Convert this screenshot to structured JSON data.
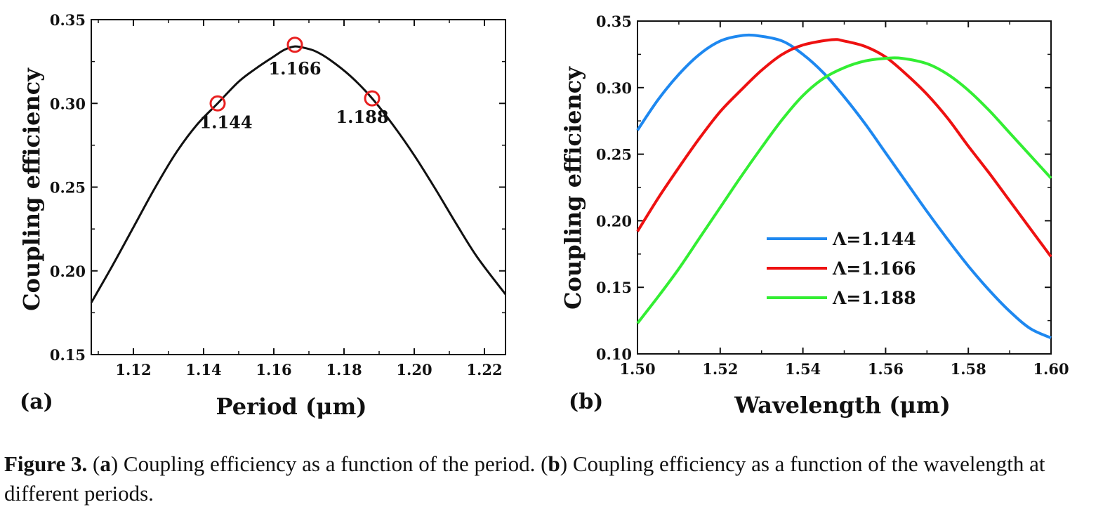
{
  "chart_data": [
    {
      "type": "line",
      "panel_label": "(a)",
      "xlabel": "Period (μm)",
      "ylabel": "Coupling efficiency",
      "xlim": [
        1.108,
        1.226
      ],
      "ylim": [
        0.15,
        0.35
      ],
      "xticks": [
        "1.12",
        "1.14",
        "1.16",
        "1.18",
        "1.20",
        "1.22"
      ],
      "yticks": [
        "0.15",
        "0.20",
        "0.25",
        "0.30",
        "0.35"
      ],
      "series": [
        {
          "color": "#111111",
          "x": [
            1.108,
            1.114,
            1.12,
            1.126,
            1.132,
            1.138,
            1.144,
            1.15,
            1.155,
            1.16,
            1.163,
            1.166,
            1.169,
            1.172,
            1.176,
            1.182,
            1.188,
            1.194,
            1.2,
            1.206,
            1.212,
            1.218,
            1.226
          ],
          "y": [
            0.181,
            0.203,
            0.226,
            0.249,
            0.27,
            0.287,
            0.3,
            0.313,
            0.321,
            0.328,
            0.332,
            0.334,
            0.333,
            0.331,
            0.326,
            0.316,
            0.303,
            0.287,
            0.269,
            0.249,
            0.228,
            0.208,
            0.186
          ]
        }
      ],
      "markers": [
        {
          "x": 1.144,
          "y": 0.3,
          "label": "1.144"
        },
        {
          "x": 1.166,
          "y": 0.335,
          "label": "1.166"
        },
        {
          "x": 1.188,
          "y": 0.303,
          "label": "1.188"
        }
      ],
      "marker_color": "#e82020",
      "grid": false
    },
    {
      "type": "line",
      "panel_label": "(b)",
      "xlabel": "Wavelength (μm)",
      "ylabel": "Coupling efficiency",
      "xlim": [
        1.5,
        1.6
      ],
      "ylim": [
        0.1,
        0.35
      ],
      "xticks": [
        "1.50",
        "1.52",
        "1.54",
        "1.56",
        "1.58",
        "1.60"
      ],
      "yticks": [
        "0.10",
        "0.15",
        "0.20",
        "0.25",
        "0.30",
        "0.35"
      ],
      "legend_position": "center-right",
      "series": [
        {
          "name": "Λ=1.144",
          "color": "#1e88f0",
          "x": [
            1.5,
            1.505,
            1.51,
            1.515,
            1.52,
            1.525,
            1.529,
            1.535,
            1.54,
            1.545,
            1.55,
            1.555,
            1.56,
            1.565,
            1.57,
            1.575,
            1.58,
            1.585,
            1.59,
            1.595,
            1.6
          ],
          "y": [
            0.268,
            0.291,
            0.31,
            0.325,
            0.335,
            0.339,
            0.339,
            0.335,
            0.325,
            0.311,
            0.293,
            0.273,
            0.251,
            0.229,
            0.207,
            0.186,
            0.166,
            0.148,
            0.132,
            0.119,
            0.112
          ]
        },
        {
          "name": "Λ=1.166",
          "color": "#ee1111",
          "x": [
            1.5,
            1.505,
            1.51,
            1.515,
            1.52,
            1.525,
            1.53,
            1.535,
            1.54,
            1.547,
            1.55,
            1.555,
            1.56,
            1.565,
            1.57,
            1.575,
            1.58,
            1.585,
            1.59,
            1.595,
            1.6
          ],
          "y": [
            0.192,
            0.217,
            0.24,
            0.262,
            0.282,
            0.298,
            0.313,
            0.325,
            0.332,
            0.336,
            0.335,
            0.331,
            0.323,
            0.31,
            0.295,
            0.277,
            0.256,
            0.236,
            0.215,
            0.194,
            0.173
          ]
        },
        {
          "name": "Λ=1.188",
          "color": "#33ee33",
          "x": [
            1.5,
            1.505,
            1.51,
            1.515,
            1.52,
            1.525,
            1.53,
            1.535,
            1.54,
            1.545,
            1.55,
            1.555,
            1.56,
            1.564,
            1.57,
            1.575,
            1.58,
            1.585,
            1.59,
            1.595,
            1.6
          ],
          "y": [
            0.123,
            0.143,
            0.164,
            0.187,
            0.21,
            0.233,
            0.255,
            0.276,
            0.294,
            0.307,
            0.315,
            0.32,
            0.322,
            0.322,
            0.318,
            0.31,
            0.298,
            0.283,
            0.266,
            0.249,
            0.232
          ]
        }
      ],
      "grid": false
    }
  ],
  "caption": {
    "label": "Figure 3.",
    "text_1": " (",
    "a": "a",
    "text_2": ") Coupling efficiency as a function of the period. (",
    "b": "b",
    "text_3": ") Coupling efficiency as a function of the wavelength at different periods."
  }
}
